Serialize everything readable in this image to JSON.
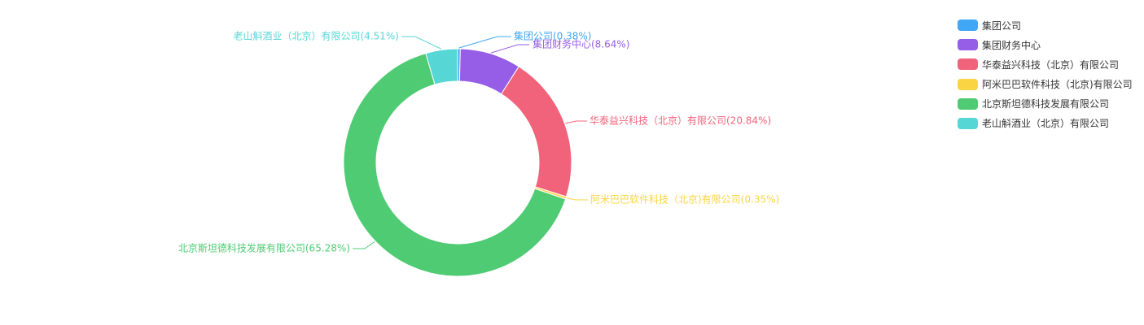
{
  "chart_data": {
    "type": "pie",
    "variant": "donut",
    "title": "",
    "slices": [
      {
        "name": "集团公司",
        "label": "集团公司(0.38%)",
        "value": 0.38,
        "color": "#3fa7f5"
      },
      {
        "name": "集团财务中心",
        "label": "集团财务中心(8.64%)",
        "value": 8.64,
        "color": "#965de6"
      },
      {
        "name": "华泰益兴科技（北京）有限公司",
        "label": "华泰益兴科技（北京）有限公司(20.84%)",
        "value": 20.84,
        "color": "#f1637b"
      },
      {
        "name": "阿米巴巴软件科技（北京)有限公司",
        "label": "阿米巴巴软件科技（北京)有限公司(0.35%)",
        "value": 0.35,
        "color": "#fbd444"
      },
      {
        "name": "北京斯坦德科技发展有限公司",
        "label": "北京斯坦德科技发展有限公司(65.28%)",
        "value": 65.28,
        "color": "#4fcb74"
      },
      {
        "name": "老山斛酒业（北京）有限公司",
        "label": "老山斛酒业（北京）有限公司(4.51%)",
        "value": 4.51,
        "color": "#57d6d6"
      }
    ],
    "legend_position": "top-right"
  }
}
